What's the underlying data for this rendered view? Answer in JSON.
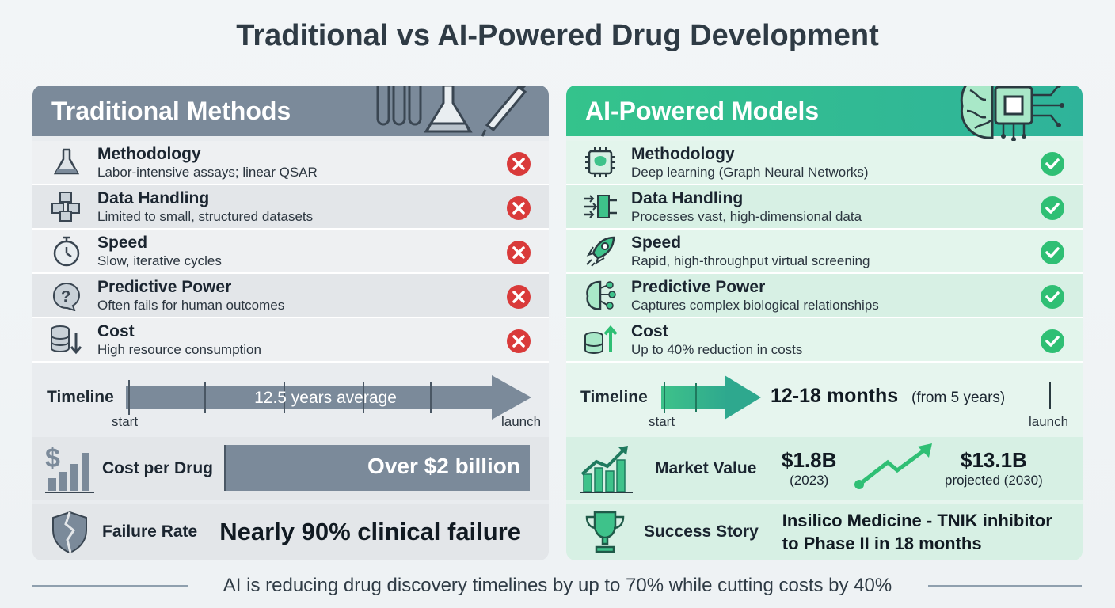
{
  "title": "Traditional vs AI-Powered Drug Development",
  "colors": {
    "traditional": "#7b8a9a",
    "ai": "#34c38c",
    "fail": "#d93a3a",
    "success": "#2fbf74"
  },
  "traditional": {
    "header": "Traditional Methods",
    "header_icon": "lab-glassware-icon",
    "rows": [
      {
        "title": "Methodology",
        "desc": "Labor-intensive assays; linear QSAR",
        "icon": "flask-icon"
      },
      {
        "title": "Data Handling",
        "desc": "Limited to small, structured datasets",
        "icon": "cubes-icon"
      },
      {
        "title": "Speed",
        "desc": "Slow, iterative cycles",
        "icon": "stopwatch-icon"
      },
      {
        "title": "Predictive Power",
        "desc": "Often fails for human outcomes",
        "icon": "question-head-icon"
      },
      {
        "title": "Cost",
        "desc": "High resource consumption",
        "icon": "coins-down-icon"
      }
    ],
    "timeline": {
      "label": "Timeline",
      "value": "12.5 years average",
      "start": "start",
      "launch": "launch"
    },
    "cost": {
      "label": "Cost per Drug",
      "value": "Over $2 billion",
      "icon": "dollar-bars-icon"
    },
    "failure": {
      "label": "Failure Rate",
      "value": "Nearly 90% clinical failure",
      "icon": "broken-shield-icon"
    }
  },
  "ai": {
    "header": "AI-Powered Models",
    "header_icon": "brain-chip-icon",
    "rows": [
      {
        "title": "Methodology",
        "desc": "Deep learning (Graph Neural Networks)",
        "icon": "chip-brain-icon"
      },
      {
        "title": "Data Handling",
        "desc": "Processes vast, high-dimensional data",
        "icon": "data-flow-icon"
      },
      {
        "title": "Speed",
        "desc": "Rapid, high-throughput virtual screening",
        "icon": "rocket-icon"
      },
      {
        "title": "Predictive Power",
        "desc": "Captures complex biological relationships",
        "icon": "neural-brain-icon"
      },
      {
        "title": "Cost",
        "desc": "Up to 40% reduction in costs",
        "icon": "coins-up-icon"
      }
    ],
    "timeline": {
      "label": "Timeline",
      "value": "12-18 months",
      "note": "(from 5 years)",
      "start": "start",
      "launch": "launch"
    },
    "market": {
      "label": "Market Value",
      "value_2023": "$1.8B",
      "year_2023": "(2023)",
      "value_2030": "$13.1B",
      "year_2030": "projected (2030)",
      "icon": "growth-chart-icon"
    },
    "success": {
      "label": "Success Story",
      "line1": "Insilico Medicine - TNIK inhibitor",
      "line2": "to Phase II in 18 months",
      "icon": "trophy-icon"
    }
  },
  "footer": "AI is reducing drug discovery timelines by up to 70% while cutting costs by 40%"
}
